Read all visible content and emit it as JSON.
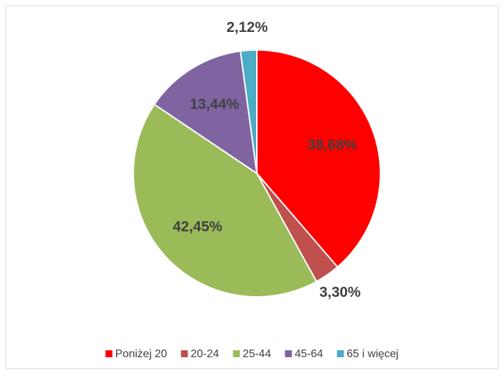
{
  "chart_data": {
    "type": "pie",
    "categories": [
      "Poniżej 20",
      "20-24",
      "25-44",
      "45-64",
      "65 i więcej"
    ],
    "values": [
      38.68,
      3.3,
      42.45,
      13.44,
      2.12
    ],
    "value_labels": [
      "38,68%",
      "3,30%",
      "42,45%",
      "13,44%",
      "2,12%"
    ],
    "colors": [
      "#ff0000",
      "#c0504d",
      "#9bbb59",
      "#8064a2",
      "#4bacc6"
    ],
    "legend": "bottom"
  }
}
